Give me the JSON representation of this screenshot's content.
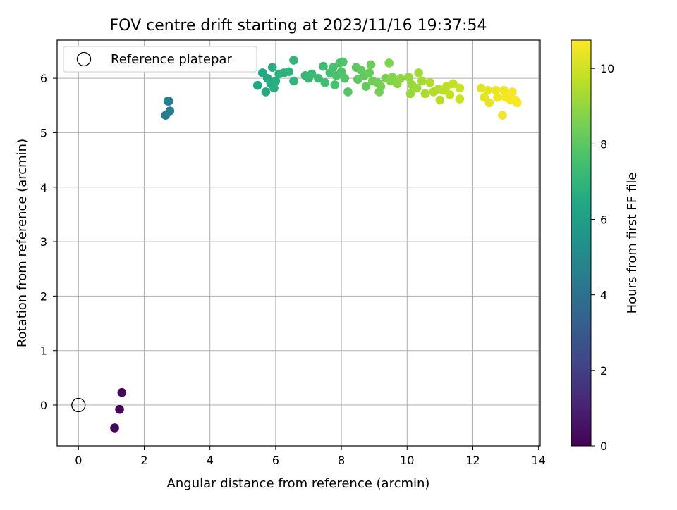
{
  "chart_data": {
    "type": "scatter",
    "title": "FOV centre drift starting at 2023/11/16 19:37:54",
    "xlabel": "Angular distance from reference (arcmin)",
    "ylabel": "Rotation from reference (arcmin)",
    "xlim": [
      -0.65,
      14.05
    ],
    "ylim": [
      -0.75,
      6.7
    ],
    "xticks": [
      0,
      2,
      4,
      6,
      8,
      10,
      12,
      14
    ],
    "yticks": [
      0,
      1,
      2,
      3,
      4,
      5,
      6
    ],
    "grid": true,
    "legend": {
      "placement": "top-left",
      "entries": [
        "Reference platepar"
      ]
    },
    "colorbar": {
      "label": "Hours from first FF file",
      "min": 0,
      "max": 10.75,
      "ticks": [
        0,
        2,
        4,
        6,
        8,
        10
      ],
      "colormap": "viridis"
    },
    "reference_point": {
      "x": 0,
      "y": 0,
      "label": "Reference platepar"
    },
    "series": [
      {
        "points": [
          {
            "x": 1.1,
            "y": -0.42,
            "c": 0.1
          },
          {
            "x": 1.25,
            "y": -0.08,
            "c": 0.15
          },
          {
            "x": 1.32,
            "y": 0.23,
            "c": 0.2
          },
          {
            "x": 2.65,
            "y": 5.32,
            "c": 4.5
          },
          {
            "x": 2.78,
            "y": 5.4,
            "c": 4.55
          },
          {
            "x": 2.75,
            "y": 5.58,
            "c": 4.6
          },
          {
            "x": 2.72,
            "y": 5.58,
            "c": 4.6
          },
          {
            "x": 5.45,
            "y": 5.87,
            "c": 6.4
          },
          {
            "x": 5.6,
            "y": 6.1,
            "c": 6.45
          },
          {
            "x": 5.7,
            "y": 5.75,
            "c": 6.5
          },
          {
            "x": 5.75,
            "y": 6.0,
            "c": 6.55
          },
          {
            "x": 5.85,
            "y": 5.9,
            "c": 6.6
          },
          {
            "x": 5.9,
            "y": 6.2,
            "c": 6.65
          },
          {
            "x": 5.95,
            "y": 5.82,
            "c": 6.7
          },
          {
            "x": 6.0,
            "y": 5.95,
            "c": 6.75
          },
          {
            "x": 6.1,
            "y": 6.08,
            "c": 6.8
          },
          {
            "x": 6.25,
            "y": 6.1,
            "c": 6.85
          },
          {
            "x": 6.4,
            "y": 6.12,
            "c": 6.9
          },
          {
            "x": 6.55,
            "y": 6.33,
            "c": 7.0
          },
          {
            "x": 6.55,
            "y": 5.95,
            "c": 7.0
          },
          {
            "x": 6.9,
            "y": 6.05,
            "c": 7.1
          },
          {
            "x": 7.0,
            "y": 6.0,
            "c": 7.15
          },
          {
            "x": 7.1,
            "y": 6.08,
            "c": 7.2
          },
          {
            "x": 7.3,
            "y": 6.0,
            "c": 7.3
          },
          {
            "x": 7.45,
            "y": 6.22,
            "c": 7.4
          },
          {
            "x": 7.5,
            "y": 5.92,
            "c": 7.45
          },
          {
            "x": 7.65,
            "y": 6.1,
            "c": 7.5
          },
          {
            "x": 7.75,
            "y": 6.2,
            "c": 7.55
          },
          {
            "x": 7.8,
            "y": 5.88,
            "c": 7.6
          },
          {
            "x": 7.85,
            "y": 6.05,
            "c": 7.65
          },
          {
            "x": 7.95,
            "y": 6.28,
            "c": 7.7
          },
          {
            "x": 8.05,
            "y": 6.3,
            "c": 7.75
          },
          {
            "x": 8.0,
            "y": 6.12,
            "c": 7.75
          },
          {
            "x": 8.1,
            "y": 6.0,
            "c": 7.8
          },
          {
            "x": 8.2,
            "y": 5.75,
            "c": 7.85
          },
          {
            "x": 8.45,
            "y": 6.2,
            "c": 8.0
          },
          {
            "x": 8.5,
            "y": 5.98,
            "c": 8.05
          },
          {
            "x": 8.6,
            "y": 6.15,
            "c": 8.1
          },
          {
            "x": 8.7,
            "y": 6.05,
            "c": 8.15
          },
          {
            "x": 8.75,
            "y": 5.85,
            "c": 8.2
          },
          {
            "x": 8.85,
            "y": 6.1,
            "c": 8.25
          },
          {
            "x": 8.9,
            "y": 6.25,
            "c": 8.3
          },
          {
            "x": 8.95,
            "y": 5.95,
            "c": 8.35
          },
          {
            "x": 9.1,
            "y": 5.92,
            "c": 8.45
          },
          {
            "x": 9.15,
            "y": 5.75,
            "c": 8.5
          },
          {
            "x": 9.2,
            "y": 5.85,
            "c": 8.5
          },
          {
            "x": 9.35,
            "y": 6.0,
            "c": 8.6
          },
          {
            "x": 9.45,
            "y": 6.28,
            "c": 8.65
          },
          {
            "x": 9.5,
            "y": 5.95,
            "c": 8.7
          },
          {
            "x": 9.55,
            "y": 6.02,
            "c": 8.75
          },
          {
            "x": 9.7,
            "y": 5.9,
            "c": 8.85
          },
          {
            "x": 9.8,
            "y": 6.0,
            "c": 8.9
          },
          {
            "x": 10.05,
            "y": 6.02,
            "c": 9.05
          },
          {
            "x": 10.1,
            "y": 5.72,
            "c": 9.1
          },
          {
            "x": 10.15,
            "y": 5.88,
            "c": 9.1
          },
          {
            "x": 10.3,
            "y": 5.82,
            "c": 9.2
          },
          {
            "x": 10.35,
            "y": 6.1,
            "c": 9.25
          },
          {
            "x": 10.45,
            "y": 5.95,
            "c": 9.3
          },
          {
            "x": 10.55,
            "y": 5.72,
            "c": 9.35
          },
          {
            "x": 10.7,
            "y": 5.92,
            "c": 9.45
          },
          {
            "x": 10.8,
            "y": 5.75,
            "c": 9.5
          },
          {
            "x": 10.95,
            "y": 5.8,
            "c": 9.55
          },
          {
            "x": 11.0,
            "y": 5.6,
            "c": 9.6
          },
          {
            "x": 11.1,
            "y": 5.78,
            "c": 9.65
          },
          {
            "x": 11.2,
            "y": 5.85,
            "c": 9.7
          },
          {
            "x": 11.3,
            "y": 5.7,
            "c": 9.75
          },
          {
            "x": 11.4,
            "y": 5.9,
            "c": 9.8
          },
          {
            "x": 11.6,
            "y": 5.82,
            "c": 9.9
          },
          {
            "x": 11.6,
            "y": 5.62,
            "c": 9.9
          },
          {
            "x": 12.25,
            "y": 5.82,
            "c": 10.25
          },
          {
            "x": 12.35,
            "y": 5.65,
            "c": 10.3
          },
          {
            "x": 12.45,
            "y": 5.78,
            "c": 10.35
          },
          {
            "x": 12.5,
            "y": 5.55,
            "c": 10.4
          },
          {
            "x": 12.7,
            "y": 5.78,
            "c": 10.45
          },
          {
            "x": 12.75,
            "y": 5.65,
            "c": 10.5
          },
          {
            "x": 12.9,
            "y": 5.32,
            "c": 10.55
          },
          {
            "x": 12.95,
            "y": 5.78,
            "c": 10.55
          },
          {
            "x": 13.0,
            "y": 5.65,
            "c": 10.6
          },
          {
            "x": 13.15,
            "y": 5.6,
            "c": 10.65
          },
          {
            "x": 13.2,
            "y": 5.75,
            "c": 10.65
          },
          {
            "x": 13.3,
            "y": 5.6,
            "c": 10.7
          },
          {
            "x": 13.35,
            "y": 5.55,
            "c": 10.72
          }
        ]
      }
    ]
  }
}
